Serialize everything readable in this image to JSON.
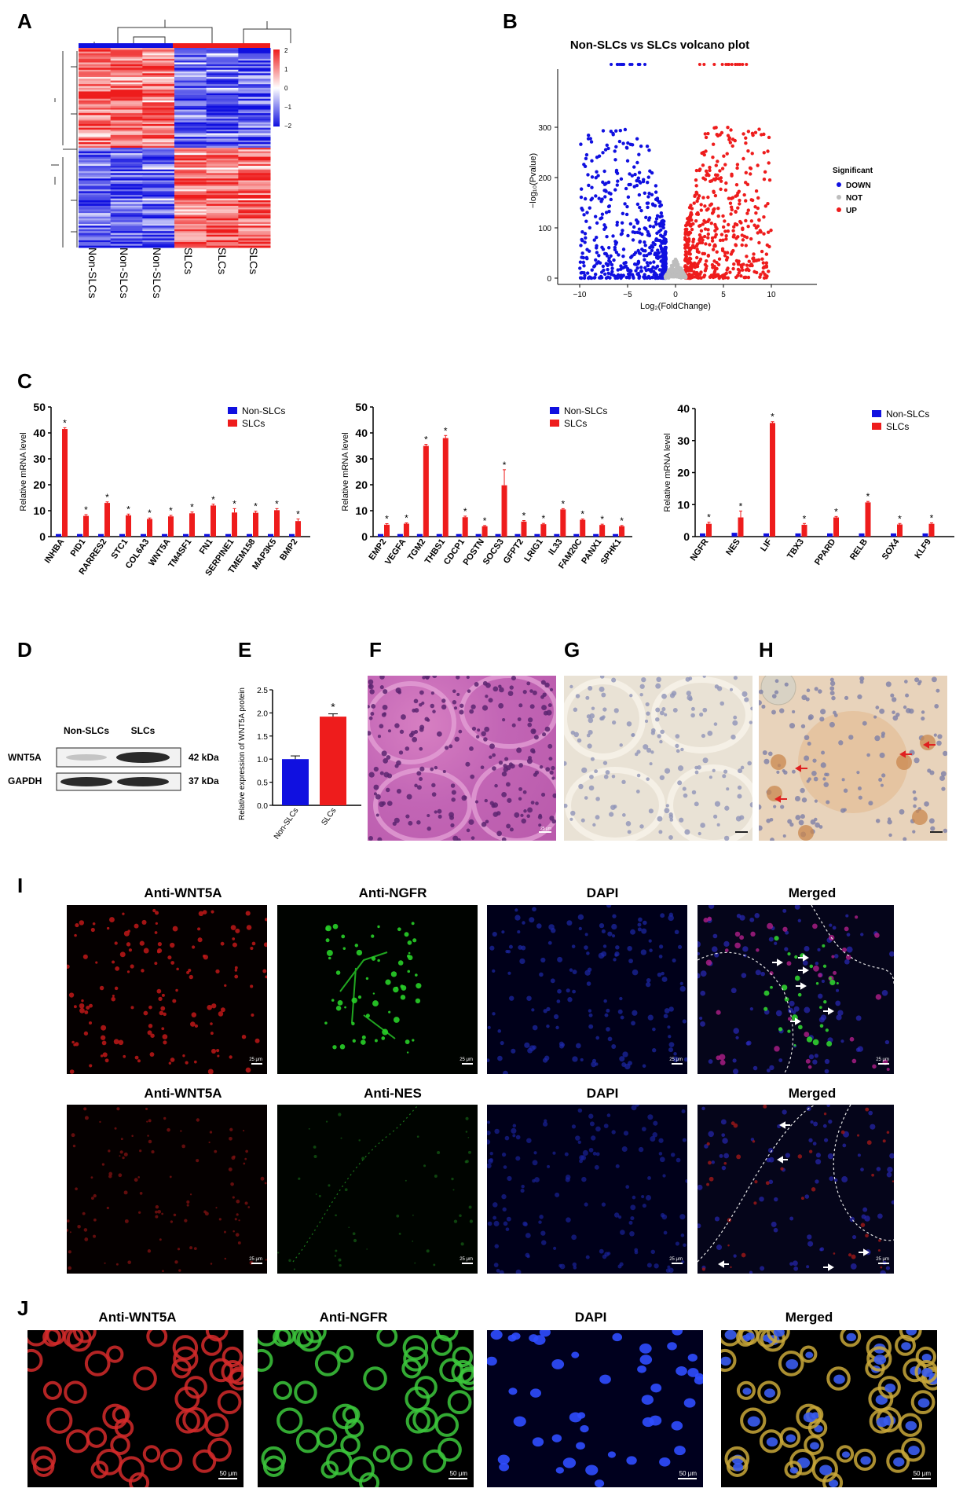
{
  "panel_labels": {
    "A": "A",
    "B": "B",
    "C": "C",
    "D": "D",
    "E": "E",
    "F": "F",
    "G": "G",
    "H": "H",
    "I": "I",
    "J": "J"
  },
  "colors": {
    "blue": "#1010e0",
    "red": "#ee1c1c",
    "grey": "#bdbdbd"
  },
  "heatmap": {
    "col_labels": [
      "Non-SLCs",
      "Non-SLCs",
      "Non-SLCs",
      "SLCs",
      "SLCs",
      "SLCs"
    ],
    "scale_ticks": [
      "2",
      "1",
      "0",
      "−1",
      "−2"
    ]
  },
  "volcano": {
    "title": "Non-SLCs vs SLCs volcano plot",
    "xlabel": "Log₂(FoldChange)",
    "ylabel": "−log₁₀(Pvalue)",
    "xticks": [
      "−10",
      "−5",
      "0",
      "5",
      "10"
    ],
    "yticks": [
      "0",
      "100",
      "200",
      "300"
    ],
    "legend_title": "Significant",
    "legend": [
      "DOWN",
      "NOT",
      "UP"
    ]
  },
  "chart_data": [
    {
      "type": "bar",
      "ylabel": "Relative mRNA level",
      "ylim": [
        0,
        50
      ],
      "yticks": [
        "0",
        "10",
        "20",
        "30",
        "40",
        "50"
      ],
      "categories": [
        "INHBA",
        "PID1",
        "RARRES2",
        "STC1",
        "COL6A3",
        "WNT5A",
        "TM4SF1",
        "FN1",
        "SERPINE1",
        "TMEM158",
        "MAP3K5",
        "BMP2"
      ],
      "series": [
        {
          "name": "Non-SLCs",
          "values": [
            1,
            1,
            1,
            1,
            1,
            1,
            1,
            1,
            1,
            1,
            1,
            1
          ]
        },
        {
          "name": "SLCs",
          "values": [
            41.5,
            8,
            13,
            8.2,
            6.8,
            7.8,
            9,
            12,
            9.3,
            9.2,
            10.2,
            6
          ]
        }
      ],
      "errors": [
        0.5,
        0.5,
        0.4,
        0.5,
        0.4,
        0.4,
        0.5,
        0.5,
        1.5,
        0.6,
        0.6,
        0.8
      ],
      "sig": [
        "*",
        "*",
        "*",
        "*",
        "*",
        "*",
        "*",
        "*",
        "*",
        "*",
        "*",
        "*"
      ]
    },
    {
      "type": "bar",
      "ylabel": "Relative mRNA level",
      "ylim": [
        0,
        50
      ],
      "yticks": [
        "0",
        "10",
        "20",
        "30",
        "40",
        "50"
      ],
      "categories": [
        "EMP2",
        "VEGFA",
        "TGM2",
        "THBS1",
        "CDCP1",
        "POSTN",
        "SOCS3",
        "GFPT2",
        "LRIG1",
        "IL33",
        "FAM20C",
        "PANX1",
        "SPHK1"
      ],
      "series": [
        {
          "name": "Non-SLCs",
          "values": [
            1,
            1,
            1,
            1,
            1,
            1,
            1,
            1,
            1,
            1,
            1,
            1,
            1
          ]
        },
        {
          "name": "SLCs",
          "values": [
            4.6,
            5,
            35,
            38,
            7.5,
            4,
            19.8,
            5.8,
            4.8,
            10.5,
            6.5,
            4.5,
            4
          ]
        }
      ],
      "errors": [
        0.4,
        0.3,
        0.6,
        1,
        0.4,
        0.3,
        6,
        0.4,
        0.3,
        0.3,
        0.3,
        0.3,
        0.3
      ],
      "sig": [
        "*",
        "*",
        "*",
        "*",
        "*",
        "*",
        "*",
        "*",
        "*",
        "*",
        "*",
        "*",
        "*"
      ]
    },
    {
      "type": "bar",
      "ylabel": "Relative mRNA level",
      "ylim": [
        0,
        40
      ],
      "yticks": [
        "0",
        "10",
        "20",
        "30",
        "40"
      ],
      "categories": [
        "NGFR",
        "NES",
        "LIF",
        "TBX3",
        "PPARD",
        "RELB",
        "SOX4",
        "KLF9"
      ],
      "series": [
        {
          "name": "Non-SLCs",
          "values": [
            1,
            1.2,
            1,
            1,
            1,
            1,
            1,
            1
          ]
        },
        {
          "name": "SLCs",
          "values": [
            4,
            6,
            35.5,
            3.7,
            6,
            10.7,
            3.8,
            4
          ]
        }
      ],
      "errors": [
        0.5,
        2,
        0.4,
        0.4,
        0.3,
        0.3,
        0.3,
        0.3
      ],
      "sig": [
        "*",
        "*",
        "*",
        "*",
        "*",
        "*",
        "*",
        "*"
      ]
    },
    {
      "type": "bar",
      "ylabel": "Relative expression of WNT5A protein",
      "ylim": [
        0,
        2.5
      ],
      "yticks": [
        "0.0",
        "0.5",
        "1.0",
        "1.5",
        "2.0",
        "2.5"
      ],
      "categories": [
        "Non-SLCs",
        "SLCs"
      ],
      "values": [
        1.0,
        1.92
      ],
      "errors": [
        0.07,
        0.06
      ],
      "sig": [
        "",
        "*"
      ]
    }
  ],
  "legend_labels": [
    "Non-SLCs",
    "SLCs"
  ],
  "western": {
    "lanes": [
      "Non-SLCs",
      "SLCs"
    ],
    "rows": [
      {
        "name": "WNT5A",
        "kda": "42 kDa"
      },
      {
        "name": "GAPDH",
        "kda": "37 kDa"
      }
    ]
  },
  "if_row1": [
    "Anti-WNT5A",
    "Anti-NGFR",
    "DAPI",
    "Merged"
  ],
  "if_row2": [
    "Anti-WNT5A",
    "Anti-NES",
    "DAPI",
    "Merged"
  ],
  "if_row3": [
    "Anti-WNT5A",
    "Anti-NGFR",
    "DAPI",
    "Merged"
  ],
  "scalebars": {
    "small": "25 μm",
    "large": "50 μm"
  }
}
